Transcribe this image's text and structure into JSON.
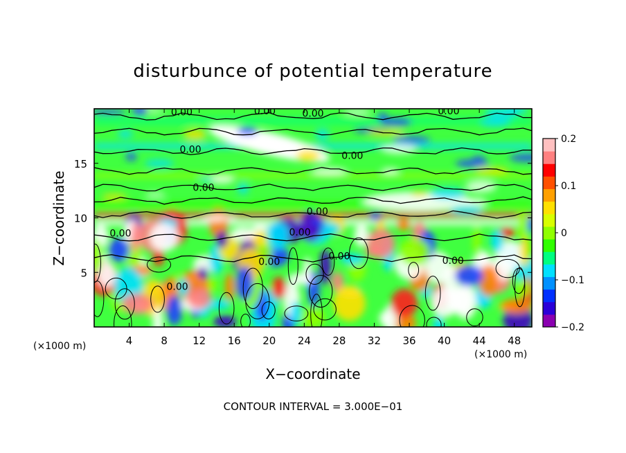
{
  "chart_data": {
    "type": "heatmap",
    "title": "disturbunce of potential temperature",
    "xlabel": "X−coordinate",
    "ylabel": "Z−coordinate",
    "x_unit_left": "(×1000 m)",
    "x_unit_right": "(×1000 m)",
    "footer": "CONTOUR INTERVAL = 3.000E−01",
    "xlim": [
      0,
      50
    ],
    "ylim": [
      0,
      20
    ],
    "x_ticks": [
      4,
      8,
      12,
      16,
      20,
      24,
      28,
      32,
      36,
      40,
      44,
      48
    ],
    "x_tick_labels": [
      "4",
      "8",
      "12",
      "16",
      "20",
      "24",
      "28",
      "32",
      "36",
      "40",
      "44",
      "48"
    ],
    "y_ticks": [
      5,
      10,
      15
    ],
    "y_tick_labels": [
      "5",
      "10",
      "15"
    ],
    "colorbar": {
      "range": [
        -0.2,
        0.2
      ],
      "tick_values": [
        0.2,
        0.1,
        0,
        -0.1,
        -0.2
      ],
      "tick_labels": [
        "0.2",
        "0.1",
        "0",
        "−0.1",
        "−0.2"
      ],
      "colors": [
        "#8a00b0",
        "#2a00d8",
        "#0030ff",
        "#0090ff",
        "#00e0ff",
        "#00ff80",
        "#30ff00",
        "#90ff00",
        "#d8ff00",
        "#ffe000",
        "#ffa000",
        "#ff5000",
        "#ff0000",
        "#ff8080",
        "#ffc0c0"
      ]
    },
    "contour_labels": [
      {
        "x": 10,
        "z": 19.7,
        "text": "0.00"
      },
      {
        "x": 19.5,
        "z": 19.8,
        "text": "0.00"
      },
      {
        "x": 25,
        "z": 19.6,
        "text": "0.00"
      },
      {
        "x": 40.5,
        "z": 19.8,
        "text": "0.00"
      },
      {
        "x": 11,
        "z": 16.3,
        "text": "0.00"
      },
      {
        "x": 29.5,
        "z": 15.7,
        "text": "0.00"
      },
      {
        "x": 12.5,
        "z": 12.8,
        "text": "0.00"
      },
      {
        "x": 25.5,
        "z": 10.6,
        "text": "0.00"
      },
      {
        "x": 3,
        "z": 8.6,
        "text": "0.00"
      },
      {
        "x": 23.5,
        "z": 8.7,
        "text": "0.00"
      },
      {
        "x": 28,
        "z": 6.5,
        "text": "0.00"
      },
      {
        "x": 20,
        "z": 6.0,
        "text": "0.00"
      },
      {
        "x": 41,
        "z": 6.1,
        "text": "0.00"
      },
      {
        "x": 9.5,
        "z": 3.7,
        "text": "0.00"
      }
    ]
  }
}
